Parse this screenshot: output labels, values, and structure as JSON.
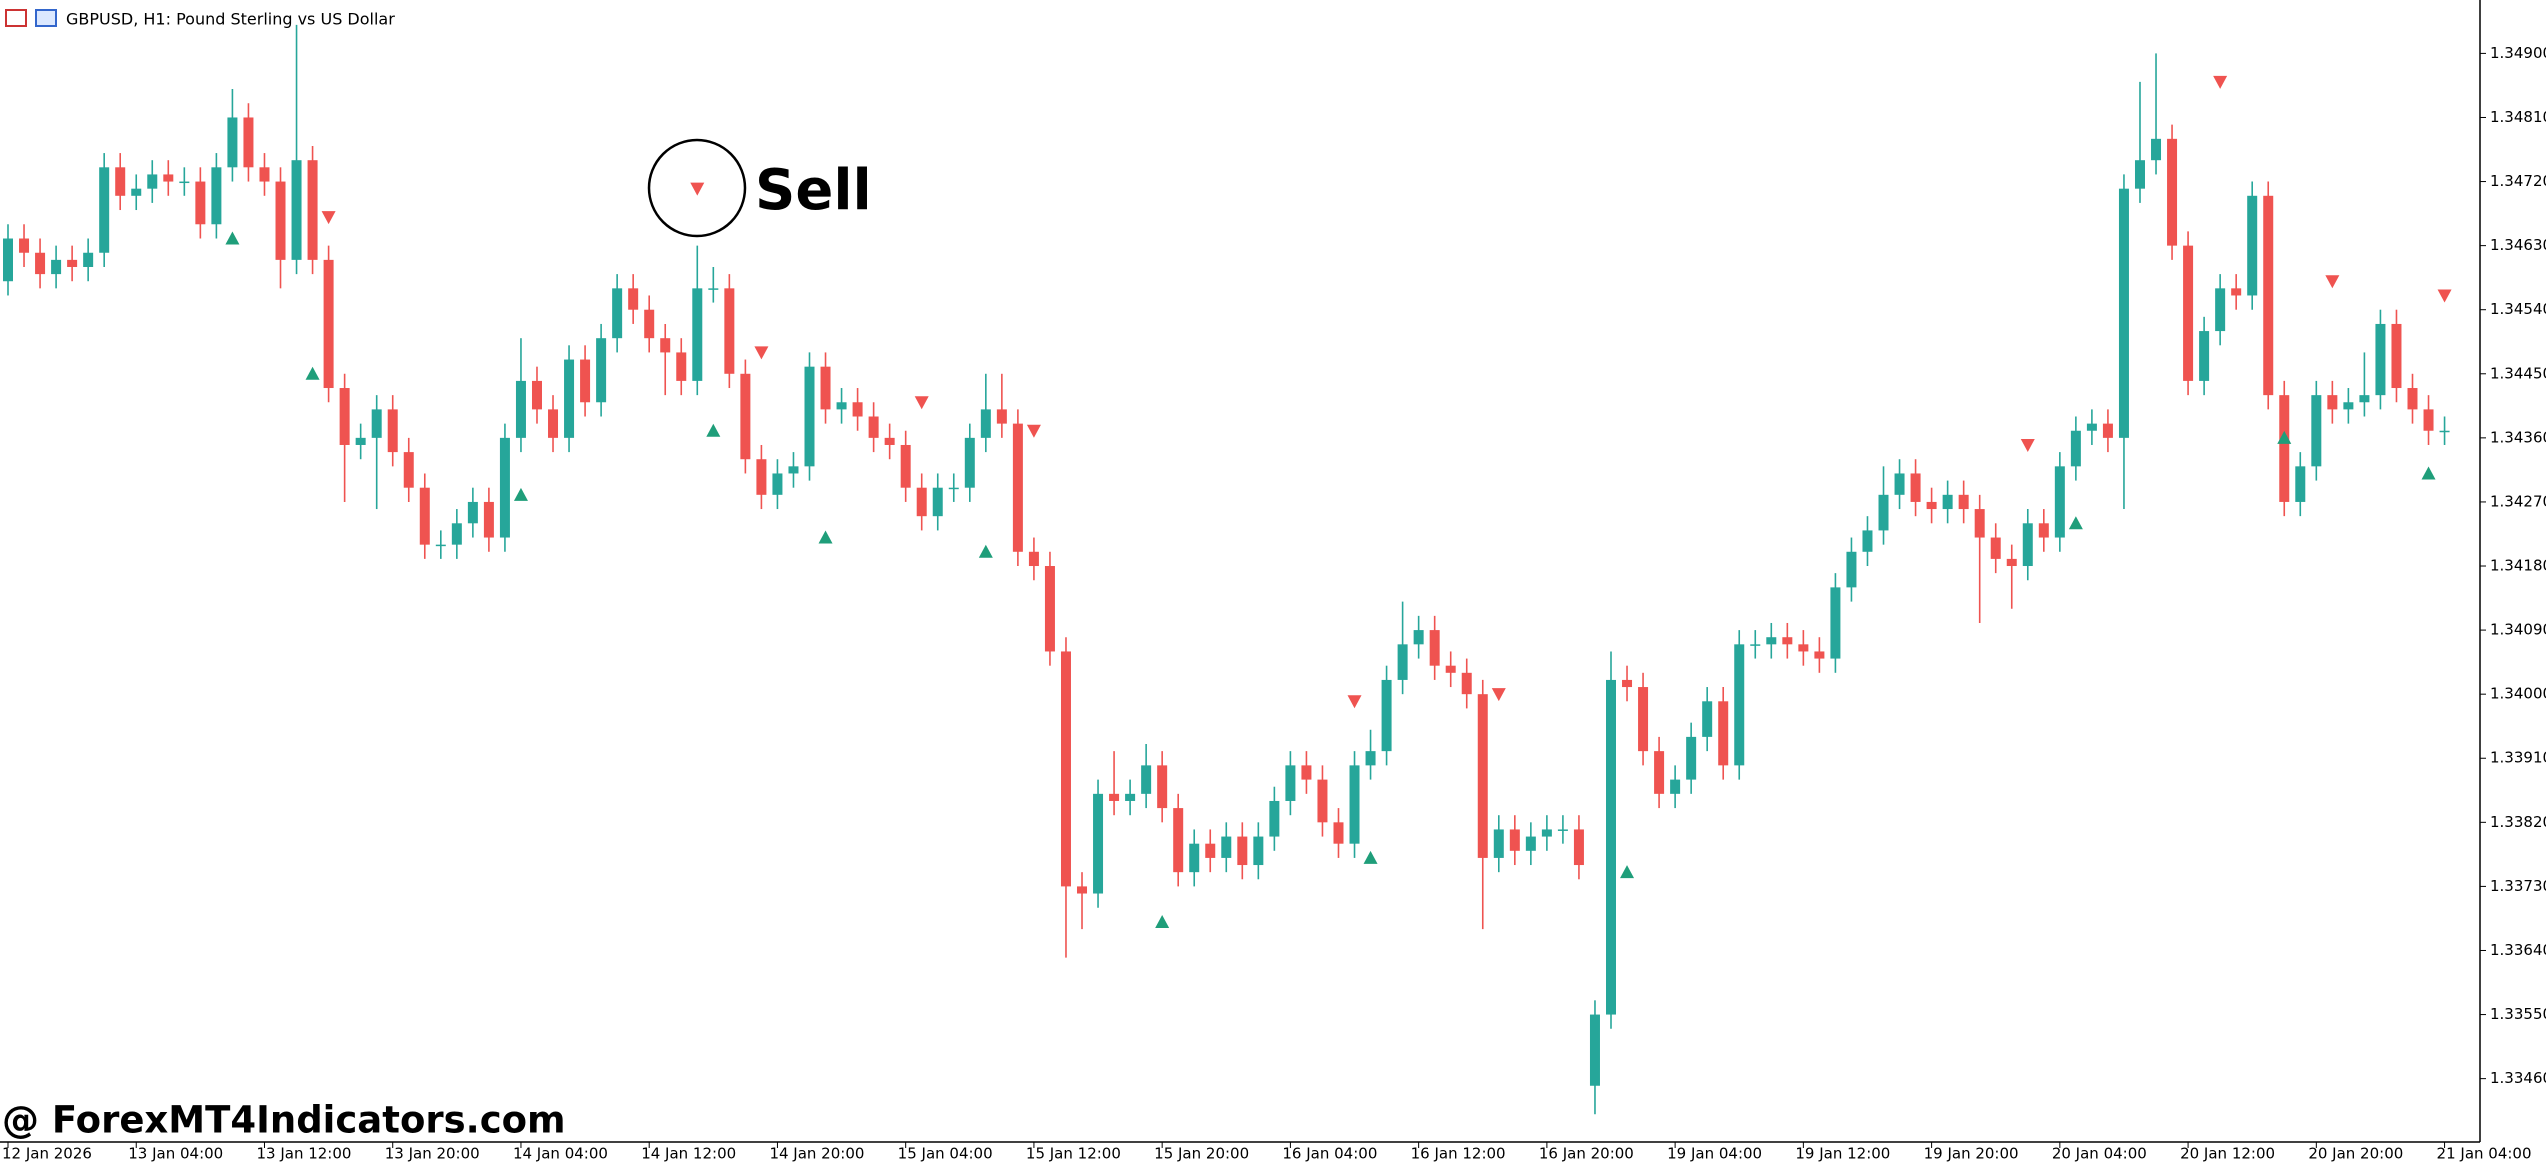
{
  "chart_data": {
    "type": "candlestick",
    "title": "GBPUSD, H1:  Pound Sterling vs US Dollar",
    "annotation": "Sell",
    "watermark": "@ ForexMT4Indicators.com",
    "up_color": "#26a69a",
    "down_color": "#ef5350",
    "ylim": [
      1.33371,
      1.34975
    ],
    "yticks": [
      {
        "value": 1.349,
        "label": "1.34900"
      },
      {
        "value": 1.3481,
        "label": "1.34810"
      },
      {
        "value": 1.3472,
        "label": "1.34720"
      },
      {
        "value": 1.3463,
        "label": "1.34630"
      },
      {
        "value": 1.3454,
        "label": "1.34540"
      },
      {
        "value": 1.3445,
        "label": "1.34450"
      },
      {
        "value": 1.3436,
        "label": "1.34360"
      },
      {
        "value": 1.3427,
        "label": "1.34270"
      },
      {
        "value": 1.3418,
        "label": "1.34180"
      },
      {
        "value": 1.3409,
        "label": "1.34090"
      },
      {
        "value": 1.34,
        "label": "1.34000"
      },
      {
        "value": 1.3391,
        "label": "1.33910"
      },
      {
        "value": 1.3382,
        "label": "1.33820"
      },
      {
        "value": 1.3373,
        "label": "1.33730"
      },
      {
        "value": 1.3364,
        "label": "1.33640"
      },
      {
        "value": 1.3355,
        "label": "1.33550"
      },
      {
        "value": 1.3346,
        "label": "1.33460"
      }
    ],
    "categories": [
      "12 Jan 2026",
      null,
      null,
      null,
      null,
      null,
      null,
      null,
      "13 Jan 04:00",
      null,
      null,
      null,
      null,
      null,
      null,
      null,
      "13 Jan 12:00",
      null,
      null,
      null,
      null,
      null,
      null,
      null,
      "13 Jan 20:00",
      null,
      null,
      null,
      null,
      null,
      null,
      null,
      "14 Jan 04:00",
      null,
      null,
      null,
      null,
      null,
      null,
      null,
      "14 Jan 12:00",
      null,
      null,
      null,
      null,
      null,
      null,
      null,
      "14 Jan 20:00",
      null,
      null,
      null,
      null,
      null,
      null,
      null,
      "15 Jan 04:00",
      null,
      null,
      null,
      null,
      null,
      null,
      null,
      "15 Jan 12:00",
      null,
      null,
      null,
      null,
      null,
      null,
      null,
      "15 Jan 20:00",
      null,
      null,
      null,
      null,
      null,
      null,
      null,
      "16 Jan 04:00",
      null,
      null,
      null,
      null,
      null,
      null,
      null,
      "16 Jan 12:00",
      null,
      null,
      null,
      null,
      null,
      null,
      null,
      "16 Jan 20:00",
      null,
      null,
      null,
      null,
      null,
      null,
      null,
      "19 Jan 04:00",
      null,
      null,
      null,
      null,
      null,
      null,
      null,
      "19 Jan 12:00",
      null,
      null,
      null,
      null,
      null,
      null,
      null,
      "19 Jan 20:00",
      null,
      null,
      null,
      null,
      null,
      null,
      null,
      "20 Jan 04:00",
      null,
      null,
      null,
      null,
      null,
      null,
      null,
      "20 Jan 12:00",
      null,
      null,
      null,
      null,
      null,
      null,
      null,
      "20 Jan 20:00",
      null,
      null,
      null,
      null,
      null,
      null,
      null,
      "21 Jan 04:00"
    ],
    "open": [
      1.3458,
      1.3464,
      1.3462,
      1.3459,
      1.3461,
      1.346,
      1.3462,
      1.3474,
      1.347,
      1.3471,
      1.3473,
      1.3472,
      1.3472,
      1.3466,
      1.3474,
      1.3481,
      1.3474,
      1.3472,
      1.3461,
      1.3475,
      1.3461,
      1.3443,
      1.3435,
      1.3436,
      1.344,
      1.3434,
      1.3429,
      1.3421,
      1.3421,
      1.3424,
      1.3427,
      1.3422,
      1.3436,
      1.3444,
      1.344,
      1.3436,
      1.3447,
      1.3441,
      1.345,
      1.3457,
      1.3454,
      1.345,
      1.3448,
      1.3444,
      1.3457,
      1.3457,
      1.3445,
      1.3433,
      1.3428,
      1.3431,
      1.3432,
      1.3446,
      1.344,
      1.3441,
      1.3439,
      1.3436,
      1.3435,
      1.3429,
      1.3425,
      1.3429,
      1.3429,
      1.3436,
      1.344,
      1.3438,
      1.342,
      1.3418,
      1.3406,
      1.3373,
      1.3372,
      1.3386,
      1.3385,
      1.3386,
      1.339,
      1.3384,
      1.3375,
      1.3379,
      1.3377,
      1.338,
      1.3376,
      1.338,
      1.3385,
      1.339,
      1.3388,
      1.3382,
      1.3379,
      1.339,
      1.3392,
      1.3402,
      1.3407,
      1.3409,
      1.3404,
      1.3403,
      1.34,
      1.3377,
      1.3381,
      1.3378,
      1.338,
      1.3381,
      1.3381,
      1.3345,
      1.3355,
      1.3402,
      1.3401,
      1.3392,
      1.3386,
      1.3388,
      1.3394,
      1.3399,
      1.339,
      1.3407,
      1.3407,
      1.3408,
      1.3407,
      1.3406,
      1.3405,
      1.3415,
      1.342,
      1.3423,
      1.3428,
      1.3431,
      1.3427,
      1.3426,
      1.3428,
      1.3426,
      1.3422,
      1.3419,
      1.3418,
      1.3424,
      1.3422,
      1.3432,
      1.3437,
      1.3438,
      1.3436,
      1.3471,
      1.3475,
      1.3478,
      1.3463,
      1.3444,
      1.3451,
      1.3457,
      1.3456,
      1.347,
      1.3442,
      1.3427,
      1.3432,
      1.3442,
      1.344,
      1.3441,
      1.3442,
      1.3452,
      1.3443,
      1.344,
      1.3437
    ],
    "high": [
      1.3466,
      1.3466,
      1.3464,
      1.3463,
      1.3463,
      1.3464,
      1.3476,
      1.3476,
      1.3473,
      1.3475,
      1.3475,
      1.3474,
      1.3474,
      1.3476,
      1.3485,
      1.3483,
      1.3476,
      1.3474,
      1.3494,
      1.3477,
      1.3463,
      1.3445,
      1.3438,
      1.3442,
      1.3442,
      1.3436,
      1.3431,
      1.3423,
      1.3426,
      1.3429,
      1.3429,
      1.3438,
      1.345,
      1.3446,
      1.3442,
      1.3449,
      1.3449,
      1.3452,
      1.3459,
      1.3459,
      1.3456,
      1.3452,
      1.345,
      1.3463,
      1.346,
      1.3459,
      1.3447,
      1.3435,
      1.3433,
      1.3434,
      1.3448,
      1.3448,
      1.3443,
      1.3443,
      1.3441,
      1.3438,
      1.3437,
      1.3431,
      1.3431,
      1.3431,
      1.3438,
      1.3445,
      1.3445,
      1.344,
      1.3422,
      1.342,
      1.3408,
      1.3375,
      1.3388,
      1.3392,
      1.3388,
      1.3393,
      1.3392,
      1.3386,
      1.3381,
      1.3381,
      1.3382,
      1.3382,
      1.3382,
      1.3387,
      1.3392,
      1.3392,
      1.339,
      1.3384,
      1.3392,
      1.3395,
      1.3404,
      1.3413,
      1.3411,
      1.3411,
      1.3406,
      1.3405,
      1.3402,
      1.3383,
      1.3383,
      1.3382,
      1.3383,
      1.3383,
      1.3383,
      1.3357,
      1.3406,
      1.3404,
      1.3403,
      1.3394,
      1.339,
      1.3396,
      1.3401,
      1.3401,
      1.3409,
      1.3409,
      1.341,
      1.341,
      1.3409,
      1.3408,
      1.3417,
      1.3422,
      1.3425,
      1.3432,
      1.3433,
      1.3433,
      1.3429,
      1.343,
      1.343,
      1.3428,
      1.3424,
      1.3421,
      1.3426,
      1.3426,
      1.3434,
      1.3439,
      1.344,
      1.344,
      1.3473,
      1.3486,
      1.349,
      1.348,
      1.3465,
      1.3453,
      1.3459,
      1.3459,
      1.3472,
      1.3472,
      1.3444,
      1.3434,
      1.3444,
      1.3444,
      1.3443,
      1.3448,
      1.3454,
      1.3454,
      1.3445,
      1.3442,
      1.3439
    ],
    "low": [
      1.3456,
      1.346,
      1.3457,
      1.3457,
      1.3458,
      1.3458,
      1.346,
      1.3468,
      1.3468,
      1.3469,
      1.347,
      1.347,
      1.3464,
      1.3464,
      1.3472,
      1.3472,
      1.347,
      1.3457,
      1.3459,
      1.3459,
      1.3441,
      1.3427,
      1.3433,
      1.3426,
      1.3432,
      1.3427,
      1.3419,
      1.3419,
      1.3419,
      1.3422,
      1.342,
      1.342,
      1.3434,
      1.3438,
      1.3434,
      1.3434,
      1.3439,
      1.3439,
      1.3448,
      1.3452,
      1.3448,
      1.3442,
      1.3442,
      1.3442,
      1.3455,
      1.3443,
      1.3431,
      1.3426,
      1.3426,
      1.3429,
      1.343,
      1.3438,
      1.3438,
      1.3437,
      1.3434,
      1.3433,
      1.3427,
      1.3423,
      1.3423,
      1.3427,
      1.3427,
      1.3434,
      1.3436,
      1.3418,
      1.3416,
      1.3404,
      1.3363,
      1.3367,
      1.337,
      1.3383,
      1.3383,
      1.3384,
      1.3382,
      1.3373,
      1.3373,
      1.3375,
      1.3375,
      1.3374,
      1.3374,
      1.3378,
      1.3383,
      1.3386,
      1.338,
      1.3377,
      1.3377,
      1.3388,
      1.339,
      1.34,
      1.3405,
      1.3402,
      1.3401,
      1.3398,
      1.3367,
      1.3375,
      1.3376,
      1.3376,
      1.3378,
      1.3379,
      1.3374,
      1.3341,
      1.3353,
      1.3399,
      1.339,
      1.3384,
      1.3384,
      1.3386,
      1.3392,
      1.3388,
      1.3388,
      1.3405,
      1.3405,
      1.3405,
      1.3404,
      1.3403,
      1.3403,
      1.3413,
      1.3418,
      1.3421,
      1.3426,
      1.3425,
      1.3424,
      1.3424,
      1.3424,
      1.341,
      1.3417,
      1.3412,
      1.3416,
      1.342,
      1.342,
      1.343,
      1.3435,
      1.3434,
      1.3426,
      1.3469,
      1.3473,
      1.3461,
      1.3442,
      1.3442,
      1.3449,
      1.3454,
      1.3454,
      1.344,
      1.3425,
      1.3425,
      1.343,
      1.3438,
      1.3438,
      1.3439,
      1.344,
      1.3441,
      1.3438,
      1.3435,
      1.3435
    ],
    "close": [
      1.3464,
      1.3462,
      1.3459,
      1.3461,
      1.346,
      1.3462,
      1.3474,
      1.347,
      1.3471,
      1.3473,
      1.3472,
      1.3472,
      1.3466,
      1.3474,
      1.3481,
      1.3474,
      1.3472,
      1.3461,
      1.3475,
      1.3461,
      1.3443,
      1.3435,
      1.3436,
      1.344,
      1.3434,
      1.3429,
      1.3421,
      1.3421,
      1.3424,
      1.3427,
      1.3422,
      1.3436,
      1.3444,
      1.344,
      1.3436,
      1.3447,
      1.3441,
      1.345,
      1.3457,
      1.3454,
      1.345,
      1.3448,
      1.3444,
      1.3457,
      1.3457,
      1.3445,
      1.3433,
      1.3428,
      1.3431,
      1.3432,
      1.3446,
      1.344,
      1.3441,
      1.3439,
      1.3436,
      1.3435,
      1.3429,
      1.3425,
      1.3429,
      1.3429,
      1.3436,
      1.344,
      1.3438,
      1.342,
      1.3418,
      1.3406,
      1.3373,
      1.3372,
      1.3386,
      1.3385,
      1.3386,
      1.339,
      1.3384,
      1.3375,
      1.3379,
      1.3377,
      1.338,
      1.3376,
      1.338,
      1.3385,
      1.339,
      1.3388,
      1.3382,
      1.3379,
      1.339,
      1.3392,
      1.3402,
      1.3407,
      1.3409,
      1.3404,
      1.3403,
      1.34,
      1.3377,
      1.3381,
      1.3378,
      1.338,
      1.3381,
      1.3381,
      1.3376,
      1.3355,
      1.3402,
      1.3401,
      1.3392,
      1.3386,
      1.3388,
      1.3394,
      1.3399,
      1.339,
      1.3407,
      1.3407,
      1.3408,
      1.3407,
      1.3406,
      1.3405,
      1.3415,
      1.342,
      1.3423,
      1.3428,
      1.3431,
      1.3427,
      1.3426,
      1.3428,
      1.3426,
      1.3422,
      1.3419,
      1.3418,
      1.3424,
      1.3422,
      1.3432,
      1.3437,
      1.3438,
      1.3436,
      1.3471,
      1.3475,
      1.3478,
      1.3463,
      1.3444,
      1.3451,
      1.3457,
      1.3456,
      1.347,
      1.3442,
      1.3427,
      1.3432,
      1.3442,
      1.344,
      1.3441,
      1.3442,
      1.3452,
      1.3443,
      1.344,
      1.3437,
      1.3437
    ],
    "buy_signals": {
      "x": [
        14,
        19,
        32,
        44,
        51,
        61,
        72,
        85,
        101,
        129,
        142,
        151
      ],
      "y": [
        1.3464,
        1.3445,
        1.3428,
        1.3437,
        1.3422,
        1.342,
        1.3368,
        1.3377,
        1.3375,
        1.3424,
        1.3436,
        1.3431
      ]
    },
    "sell_signals": {
      "x": [
        20,
        43,
        47,
        57,
        64,
        84,
        93,
        126,
        138,
        145,
        152
      ],
      "y": [
        1.3467,
        1.3471,
        1.3448,
        1.3441,
        1.3437,
        1.3399,
        1.34,
        1.3435,
        1.3486,
        1.3458,
        1.3456
      ]
    }
  }
}
